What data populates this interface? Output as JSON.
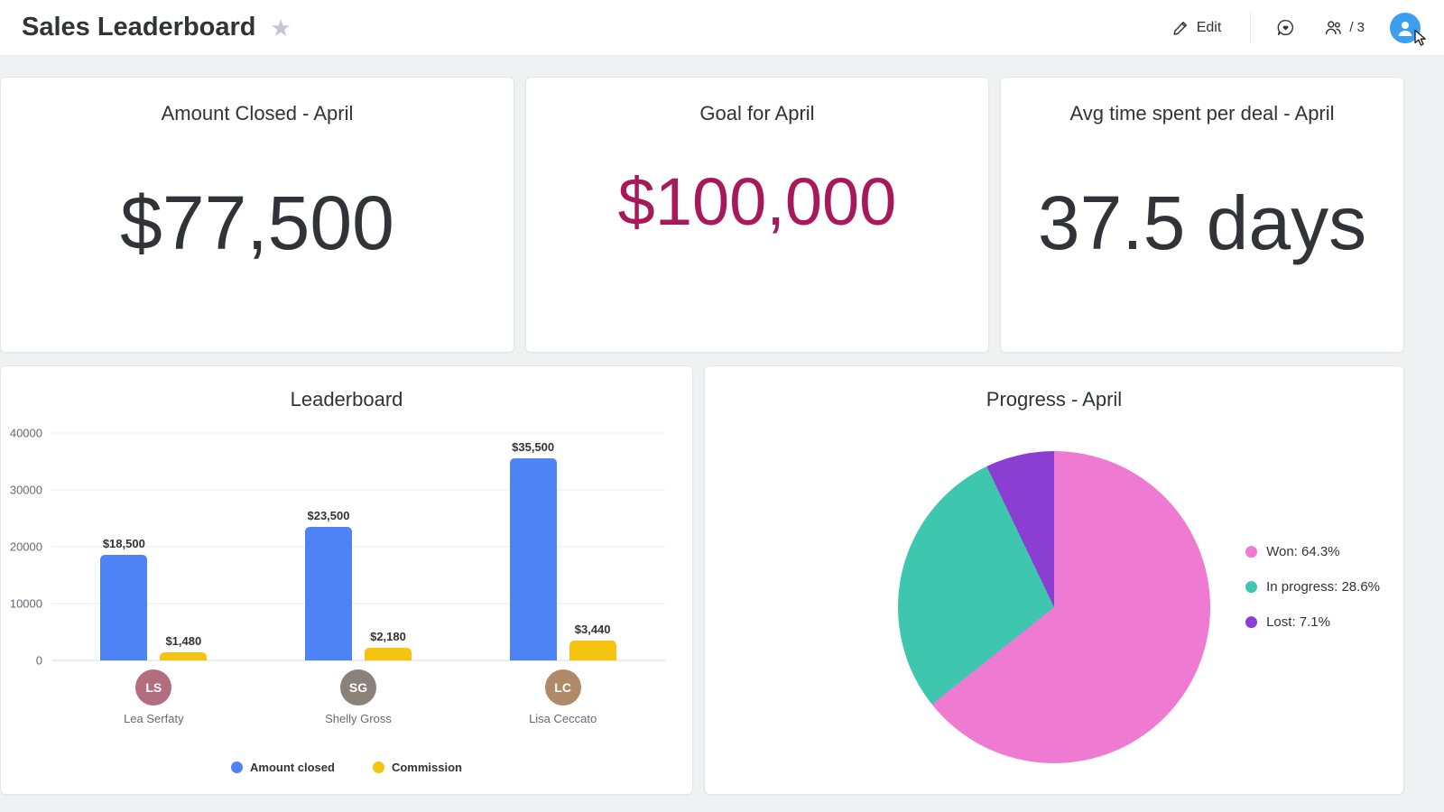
{
  "header": {
    "title": "Sales Leaderboard",
    "edit_label": "Edit",
    "members_count": "/ 3"
  },
  "cards": {
    "amount_closed": {
      "title": "Amount Closed - April",
      "value": "$77,500"
    },
    "goal": {
      "title": "Goal for April",
      "value": "$100,000",
      "color": "#a8195c"
    },
    "avg_time": {
      "title": "Avg time spent per deal - April",
      "value": "37.5 days"
    }
  },
  "chart_data": [
    {
      "type": "bar",
      "title": "Leaderboard",
      "categories": [
        "Lea Serfaty",
        "Shelly Gross",
        "Lisa Ceccato"
      ],
      "series": [
        {
          "name": "Amount closed",
          "color": "#4e83f5",
          "values": [
            18500,
            23500,
            35500
          ],
          "labels": [
            "$18,500",
            "$23,500",
            "$35,500"
          ]
        },
        {
          "name": "Commission",
          "color": "#f5c411",
          "values": [
            1480,
            2180,
            3440
          ],
          "labels": [
            "$1,480",
            "$2,180",
            "$3,440"
          ]
        }
      ],
      "xlabel": "",
      "ylabel": "",
      "ylim": [
        0,
        40000
      ],
      "yticks": [
        0,
        10000,
        20000,
        30000,
        40000
      ],
      "grid": true,
      "legend_position": "bottom"
    },
    {
      "type": "pie",
      "title": "Progress - April",
      "slices": [
        {
          "label": "Won",
          "pct": 64.3,
          "color": "#ef7ad1",
          "legend": "Won: 64.3%"
        },
        {
          "label": "In progress",
          "pct": 28.6,
          "color": "#3fc6ae",
          "legend": "In progress: 28.6%"
        },
        {
          "label": "Lost",
          "pct": 7.1,
          "color": "#8a3fd2",
          "legend": "Lost: 7.1%"
        }
      ],
      "legend_position": "right"
    }
  ],
  "avatars": [
    {
      "name": "Lea Serfaty",
      "initials": "LS",
      "color": "#b26e7e"
    },
    {
      "name": "Shelly Gross",
      "initials": "SG",
      "color": "#8a8178"
    },
    {
      "name": "Lisa Ceccato",
      "initials": "LC",
      "color": "#b08968"
    }
  ]
}
